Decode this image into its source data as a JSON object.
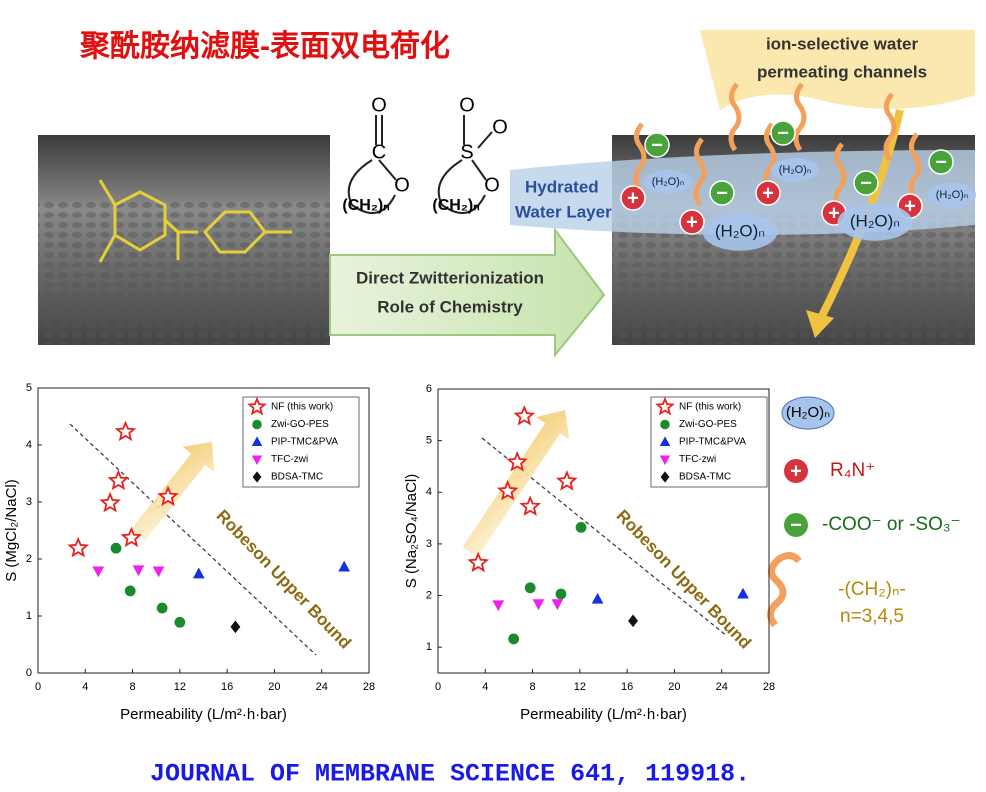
{
  "title": "聚酰胺纳滤膜-表面双电荷化",
  "citation": "JOURNAL OF MEMBRANE SCIENCE 641, 119918.",
  "schematic": {
    "channel_label": [
      "ion-selective water",
      "permeating channels"
    ],
    "hydrated_label": [
      "Hydrated",
      "Water Layer"
    ],
    "arrow_label": [
      "Direct Zwitterionization",
      "Role of Chemistry"
    ],
    "chain": "(CH₂)ₙ",
    "oxygen": "O",
    "carbon": "C",
    "sulfur": "S",
    "water": "(H₂O)ₙ",
    "plus": "+",
    "minus": "−"
  },
  "key": {
    "cation": "R₄N⁺",
    "anion": "-COO⁻ or -SO₃⁻",
    "spacer": [
      "-(CH₂)ₙ-",
      "n=3,4,5"
    ]
  },
  "chart_data": [
    {
      "type": "scatter",
      "xlabel": "Permeability (L/m²·h·bar)",
      "ylabel": "S (MgCl₂/NaCl)",
      "xlim": [
        0,
        28
      ],
      "xticks": [
        0,
        4,
        8,
        12,
        16,
        20,
        24,
        28
      ],
      "ylim": [
        0,
        5
      ],
      "yticks": [
        0,
        1,
        2,
        3,
        4,
        5
      ],
      "annotation": "Robeson Upper Bound",
      "legend": "upper right",
      "series": [
        {
          "name": "NF (this work)",
          "color": "#e8201e",
          "marker": "star",
          "x": [
            3.4,
            6.1,
            6.8,
            7.4,
            7.9,
            11.0
          ],
          "values": [
            2.19,
            2.98,
            3.37,
            4.23,
            2.37,
            3.09
          ]
        },
        {
          "name": "Zwi-GO-PES",
          "color": "#1a8a2a",
          "marker": "circle",
          "x": [
            6.6,
            7.8,
            10.5,
            12.0
          ],
          "values": [
            2.19,
            1.44,
            1.14,
            0.89
          ]
        },
        {
          "name": "PIP-TMC&PVA",
          "color": "#1530e0",
          "marker": "triangle",
          "x": [
            13.6,
            25.9
          ],
          "values": [
            1.74,
            1.86
          ]
        },
        {
          "name": "TFC-zwi",
          "color": "#ee22ee",
          "marker": "triangle-down",
          "x": [
            5.1,
            8.5,
            10.2
          ],
          "values": [
            1.79,
            1.81,
            1.79
          ]
        },
        {
          "name": "BDSA-TMC",
          "color": "#111111",
          "marker": "diamond",
          "x": [
            16.7
          ],
          "values": [
            0.81
          ]
        }
      ]
    },
    {
      "type": "scatter",
      "xlabel": "Permeability (L/m²·h·bar)",
      "ylabel": "S (Na₂SO₄/NaCl)",
      "xlim": [
        0,
        28
      ],
      "xticks": [
        0,
        4,
        8,
        12,
        16,
        20,
        24,
        28
      ],
      "ylim": [
        0.5,
        6
      ],
      "yticks": [
        1,
        2,
        3,
        4,
        5,
        6
      ],
      "annotation": "Robeson Upper Bound",
      "legend": "upper right",
      "series": [
        {
          "name": "NF (this work)",
          "color": "#e8201e",
          "marker": "star",
          "x": [
            3.4,
            5.9,
            6.7,
            7.3,
            7.8,
            10.9
          ],
          "values": [
            2.63,
            4.02,
            4.58,
            5.47,
            3.72,
            4.21
          ]
        },
        {
          "name": "Zwi-GO-PES",
          "color": "#1a8a2a",
          "marker": "circle",
          "x": [
            6.4,
            7.8,
            10.4,
            12.1
          ],
          "values": [
            1.16,
            2.15,
            2.03,
            3.32
          ]
        },
        {
          "name": "PIP-TMC&PVA",
          "color": "#1530e0",
          "marker": "triangle",
          "x": [
            13.5,
            25.8
          ],
          "values": [
            1.93,
            2.03
          ]
        },
        {
          "name": "TFC-zwi",
          "color": "#ee22ee",
          "marker": "triangle-down",
          "x": [
            5.1,
            8.5,
            10.1
          ],
          "values": [
            1.82,
            1.84,
            1.84
          ]
        },
        {
          "name": "BDSA-TMC",
          "color": "#111111",
          "marker": "diamond",
          "x": [
            16.5
          ],
          "values": [
            1.51
          ]
        }
      ]
    }
  ]
}
